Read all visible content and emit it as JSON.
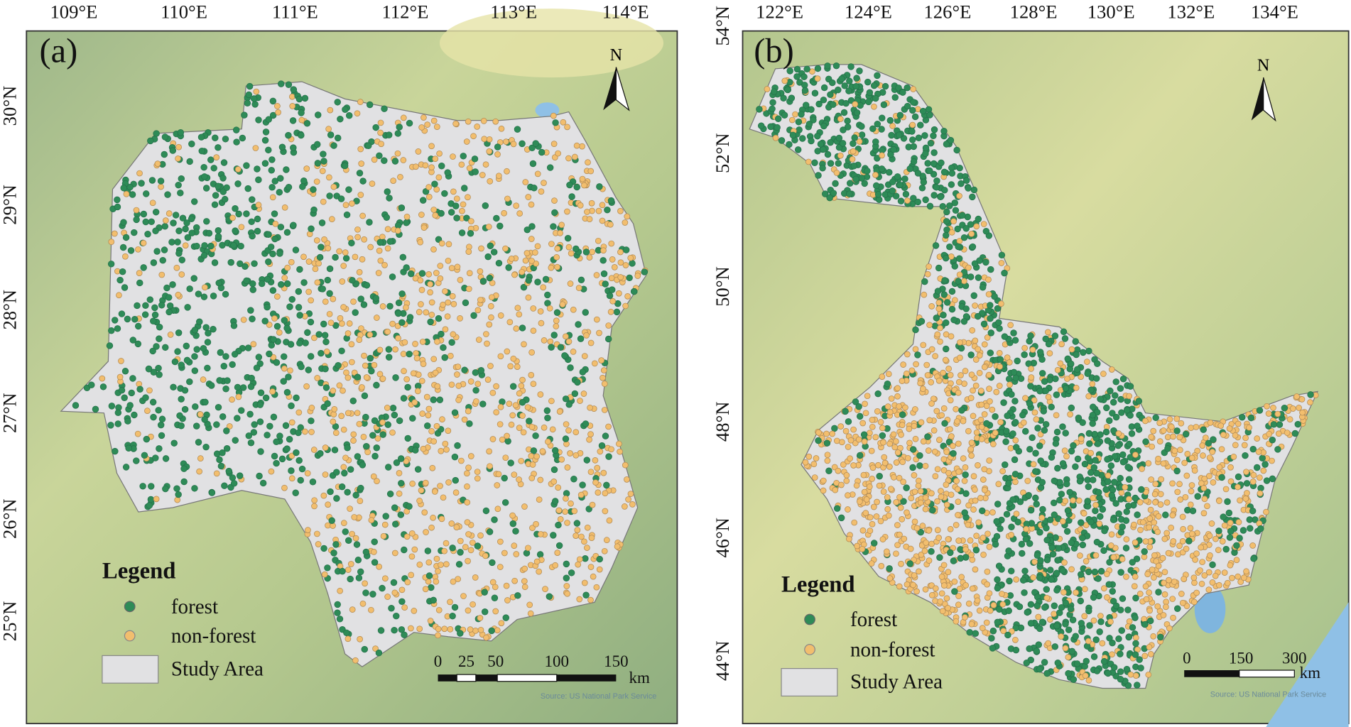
{
  "panels": [
    {
      "label": "(a)",
      "lon_labels": [
        "109°E",
        "110°E",
        "111°E",
        "112°E",
        "113°E",
        "114°E"
      ],
      "lat_labels": [
        "30°N",
        "29°N",
        "28°N",
        "27°N",
        "26°N",
        "25°N"
      ],
      "north": "N",
      "legend": {
        "title": "Legend",
        "items": [
          "forest",
          "non-forest",
          "Study Area"
        ]
      },
      "scale": {
        "labels": [
          "0",
          "25",
          "50",
          "100",
          "150"
        ],
        "unit": "km"
      },
      "source": "Source: US National Park Service"
    },
    {
      "label": "(b)",
      "lon_labels": [
        "122°E",
        "124°E",
        "126°E",
        "128°E",
        "130°E",
        "132°E",
        "134°E"
      ],
      "lat_labels": [
        "54°N",
        "52°N",
        "50°N",
        "48°N",
        "46°N",
        "44°N"
      ],
      "north": "N",
      "legend": {
        "title": "Legend",
        "items": [
          "forest",
          "non-forest",
          "Study Area"
        ]
      },
      "scale": {
        "labels": [
          "0",
          "150",
          "300"
        ],
        "unit": "km"
      },
      "source": "Source: US National Park Service"
    }
  ]
}
